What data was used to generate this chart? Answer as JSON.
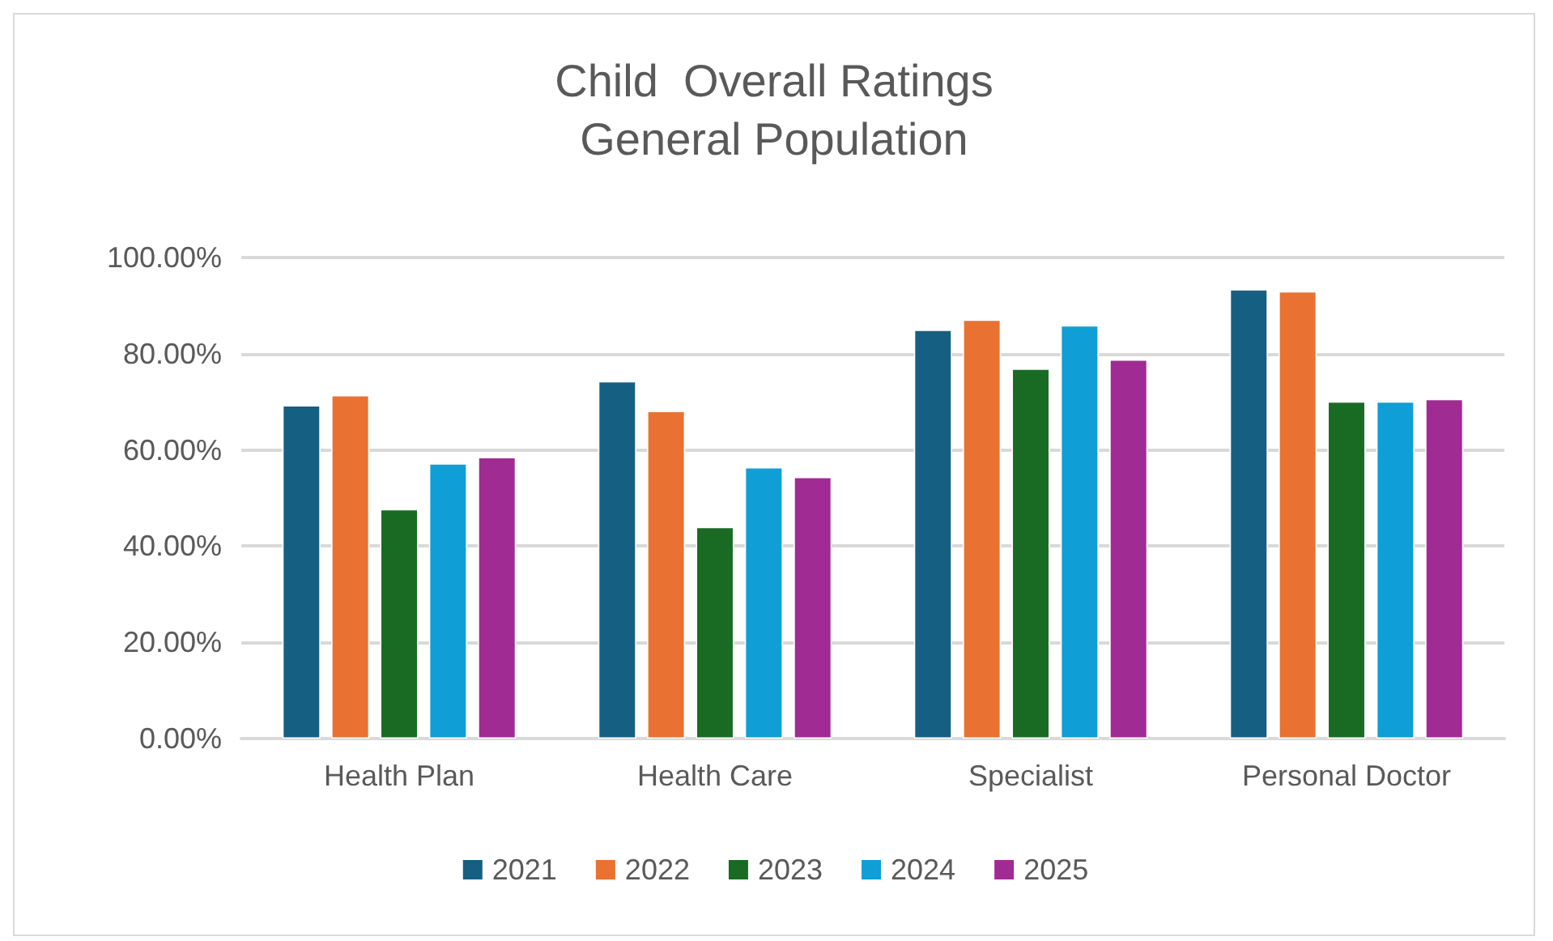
{
  "chart_data": {
    "type": "bar",
    "title": "Child  Overall Ratings",
    "subtitle": "General Population",
    "categories": [
      "Health Plan",
      "Health Care",
      "Specialist",
      "Personal Doctor"
    ],
    "series": [
      {
        "name": "2021",
        "color": "#156082",
        "values": [
          69.3,
          74.3,
          85.0,
          93.4
        ]
      },
      {
        "name": "2022",
        "color": "#e97132",
        "values": [
          71.4,
          68.1,
          87.1,
          93.0
        ]
      },
      {
        "name": "2023",
        "color": "#196b24",
        "values": [
          47.7,
          44.0,
          76.9,
          70.1
        ]
      },
      {
        "name": "2024",
        "color": "#0f9ed5",
        "values": [
          57.2,
          56.4,
          85.9,
          70.1
        ]
      },
      {
        "name": "2025",
        "color": "#a02b93",
        "values": [
          58.5,
          54.4,
          78.8,
          70.6
        ]
      }
    ],
    "ylim": [
      0,
      100
    ],
    "yticks": [
      {
        "value": 0,
        "label": "0.00%"
      },
      {
        "value": 20,
        "label": "20.00%"
      },
      {
        "value": 40,
        "label": "40.00%"
      },
      {
        "value": 60,
        "label": "60.00%"
      },
      {
        "value": 80,
        "label": "80.00%"
      },
      {
        "value": 100,
        "label": "100.00%"
      }
    ],
    "grid": "y",
    "legend": "bottom"
  }
}
